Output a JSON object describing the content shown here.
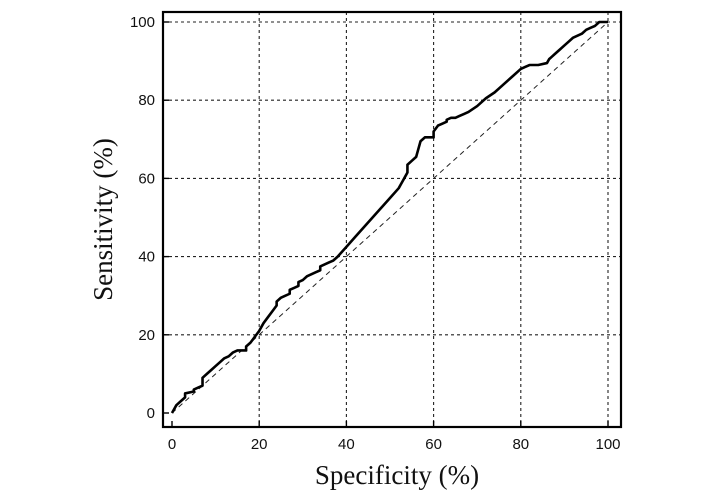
{
  "chart_data": {
    "type": "line",
    "title": "",
    "xlabel": "Specificity (%)",
    "ylabel": "Sensitivity (%)",
    "xlim": [
      0,
      100
    ],
    "ylim": [
      0,
      100
    ],
    "x_ticks": [
      0,
      20,
      40,
      60,
      80,
      100
    ],
    "y_ticks": [
      0,
      20,
      40,
      60,
      80,
      100
    ],
    "grid": true,
    "legend": "none",
    "colors": {
      "curve": "#000000",
      "grid": "#222222",
      "reference": "#222222"
    },
    "series": [
      {
        "line_style": "solid",
        "x": [
          0,
          1,
          2,
          3,
          3,
          5,
          5,
          6,
          7,
          7,
          8,
          9,
          10,
          11,
          12,
          13,
          14,
          15,
          16,
          17,
          17,
          18,
          19,
          20,
          21,
          22,
          23,
          24,
          24,
          25,
          26,
          27,
          27,
          28,
          29,
          29,
          30,
          31,
          32,
          33,
          34,
          34,
          35,
          36,
          37,
          38,
          40,
          42,
          44,
          46,
          48,
          50,
          52,
          52.5,
          53,
          53.5,
          54,
          54,
          55,
          56,
          56.5,
          57,
          58,
          59,
          60,
          60,
          61,
          62,
          63,
          63,
          64,
          65,
          66,
          67,
          68,
          70,
          72,
          74,
          76,
          78,
          80,
          81,
          82,
          84,
          86,
          86.5,
          87,
          88,
          89,
          90,
          91,
          92,
          93,
          94,
          95,
          96,
          97,
          98,
          100
        ],
        "y": [
          0,
          2,
          3,
          4,
          5,
          5.5,
          6,
          6.5,
          7,
          9,
          10,
          11,
          12,
          13,
          14,
          14.5,
          15.5,
          16,
          16,
          16,
          17,
          18,
          19.5,
          21,
          23,
          24.5,
          26,
          27.5,
          28.5,
          29.5,
          30,
          30.5,
          31.5,
          32,
          32.5,
          33.5,
          34,
          35,
          35.5,
          36,
          36.5,
          37.5,
          38,
          38.5,
          39,
          40,
          42.5,
          45,
          47.5,
          50,
          52.5,
          55,
          57.5,
          58.5,
          59.5,
          60.5,
          61.5,
          63.5,
          64.5,
          65.5,
          67.5,
          69.5,
          70.5,
          70.5,
          70.5,
          72,
          73.5,
          74,
          74.5,
          75,
          75.5,
          75.5,
          76,
          76.5,
          77,
          78.5,
          80.5,
          82,
          84,
          86,
          88,
          88.5,
          89,
          89,
          89.5,
          90.5,
          91,
          92,
          93,
          94,
          95,
          96,
          96.5,
          97,
          98,
          98.5,
          99,
          100,
          100
        ]
      },
      {
        "line_style": "dashed",
        "x": [
          0,
          100
        ],
        "y": [
          0,
          100
        ]
      }
    ]
  }
}
